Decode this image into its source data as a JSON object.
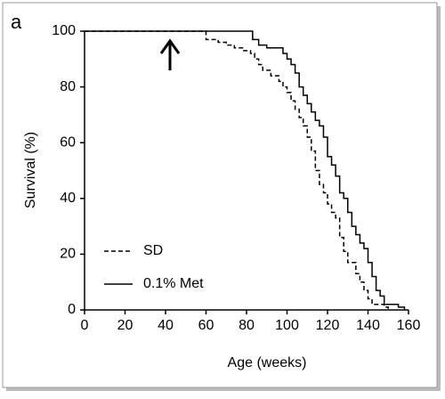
{
  "panel_label": "a",
  "chart_data": {
    "type": "line",
    "xlabel": "Age (weeks)",
    "ylabel": "Survival (%)",
    "xlim": [
      0,
      160
    ],
    "xticks": [
      0,
      20,
      40,
      60,
      80,
      100,
      120,
      140,
      160
    ],
    "ylim": [
      0,
      100
    ],
    "yticks": [
      0,
      20,
      40,
      60,
      80,
      100
    ],
    "grid": false,
    "legend": "lower left",
    "series": [
      {
        "name": "SD",
        "color": "#000000",
        "dash": true,
        "x": [
          0,
          60,
          60,
          66,
          66,
          70,
          70,
          74,
          74,
          78,
          78,
          82,
          82,
          84,
          84,
          86,
          86,
          88,
          88,
          92,
          92,
          96,
          96,
          98,
          98,
          100,
          100,
          102,
          102,
          104,
          104,
          106,
          106,
          108,
          108,
          110,
          110,
          112,
          112,
          114,
          114,
          116,
          116,
          118,
          118,
          120,
          120,
          122,
          122,
          124,
          124,
          126,
          126,
          128,
          128,
          130,
          130,
          134,
          134,
          136,
          136,
          138,
          138,
          140,
          140,
          142,
          142,
          148,
          148,
          150,
          150
        ],
        "values": [
          100,
          100,
          97,
          97,
          96,
          96,
          95,
          95,
          94,
          94,
          93,
          93,
          92,
          92,
          90,
          90,
          88,
          88,
          86,
          86,
          84,
          84,
          82,
          82,
          80,
          80,
          78,
          78,
          75,
          75,
          72,
          72,
          69,
          69,
          66,
          66,
          62,
          62,
          57,
          57,
          50,
          50,
          45,
          45,
          42,
          42,
          38,
          38,
          35,
          35,
          33,
          33,
          26,
          26,
          21,
          21,
          17,
          17,
          13,
          13,
          10,
          10,
          7,
          7,
          4,
          4,
          2,
          2,
          1,
          1,
          0
        ]
      },
      {
        "name": "0.1% Met",
        "color": "#000000",
        "dash": false,
        "x": [
          0,
          83,
          83,
          86,
          86,
          90,
          90,
          98,
          98,
          100,
          100,
          102,
          102,
          104,
          104,
          106,
          106,
          108,
          108,
          110,
          110,
          112,
          112,
          114,
          114,
          116,
          116,
          118,
          118,
          120,
          120,
          122,
          122,
          124,
          124,
          126,
          126,
          128,
          128,
          130,
          130,
          132,
          132,
          134,
          134,
          136,
          136,
          138,
          138,
          140,
          140,
          142,
          142,
          144,
          144,
          146,
          146,
          148,
          148,
          155,
          155,
          158,
          158
        ],
        "values": [
          100,
          100,
          97,
          97,
          95,
          95,
          94,
          94,
          92,
          92,
          90,
          90,
          88,
          88,
          85,
          85,
          80,
          80,
          77,
          77,
          74,
          74,
          71,
          71,
          68,
          68,
          66,
          66,
          62,
          62,
          55,
          55,
          52,
          52,
          48,
          48,
          42,
          42,
          40,
          40,
          35,
          35,
          30,
          30,
          27,
          27,
          24,
          24,
          22,
          22,
          17,
          17,
          12,
          12,
          7,
          7,
          5,
          5,
          2,
          2,
          1,
          1,
          0
        ]
      }
    ]
  }
}
